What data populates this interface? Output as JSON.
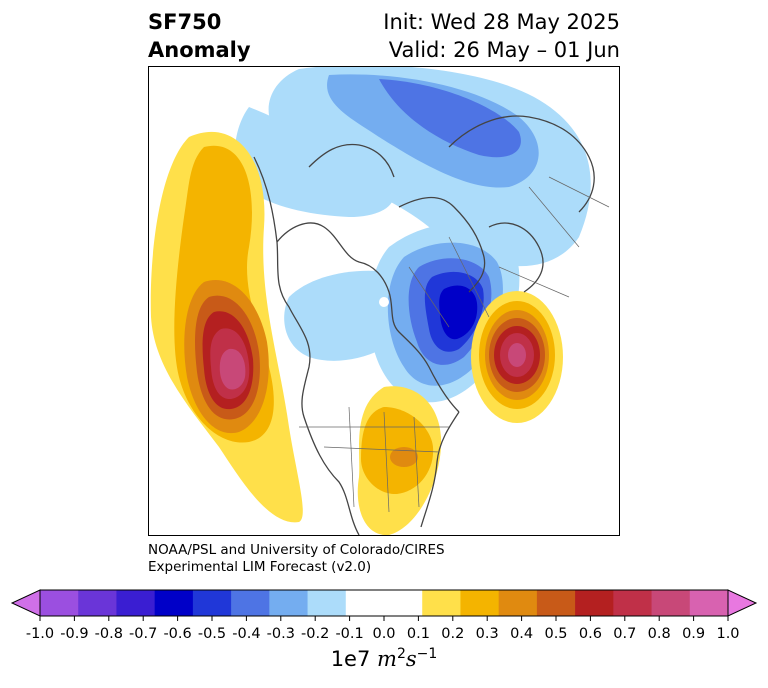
{
  "title": {
    "left_line1": "SF750",
    "left_line2": "Anomaly",
    "right_line1": "Init: Wed 28 May 2025",
    "right_line2": "Valid: 26 May – 01 Jun"
  },
  "credit": {
    "line1": "NOAA/PSL and University of Colorado/CIRES",
    "line2": "Experimental LIM Forecast (v2.0)"
  },
  "map": {
    "projection": "north-polar-stereographic",
    "variable": "750-hPa streamfunction anomaly",
    "features": [
      {
        "sign": "positive",
        "max_level": 0.8,
        "region": "North Pacific"
      },
      {
        "sign": "positive",
        "max_level": 0.8,
        "region": "North Atlantic / west of Europe"
      },
      {
        "sign": "positive",
        "max_level": 0.4,
        "region": "Eastern United States"
      },
      {
        "sign": "negative",
        "max_level": -0.6,
        "region": "Scandinavia / Baltic"
      },
      {
        "sign": "negative",
        "max_level": -0.3,
        "region": "Eastern Siberia"
      }
    ]
  },
  "colorbar": {
    "ticks": [
      "-1.0",
      "-0.9",
      "-0.8",
      "-0.7",
      "-0.6",
      "-0.5",
      "-0.4",
      "-0.3",
      "-0.2",
      "-0.1",
      "0.0",
      "0.1",
      "0.2",
      "0.3",
      "0.4",
      "0.5",
      "0.6",
      "0.7",
      "0.8",
      "0.9",
      "1.0"
    ],
    "colors": [
      "#9b4fe0",
      "#6a35d8",
      "#3a1ed2",
      "#0000c8",
      "#2037d8",
      "#4e74e4",
      "#74adf0",
      "#acdcfa",
      "#ffffff",
      "#ffffff",
      "#ffe04a",
      "#f4b400",
      "#e08a10",
      "#c85a18",
      "#b42020",
      "#c03048",
      "#c84878",
      "#d862b0"
    ],
    "extend_low_color": "#d070e8",
    "extend_high_color": "#e878e0",
    "units_prefix": "1e7",
    "units_m": "m",
    "units_m_exp": "2",
    "units_s": "s",
    "units_s_exp": "−1"
  }
}
